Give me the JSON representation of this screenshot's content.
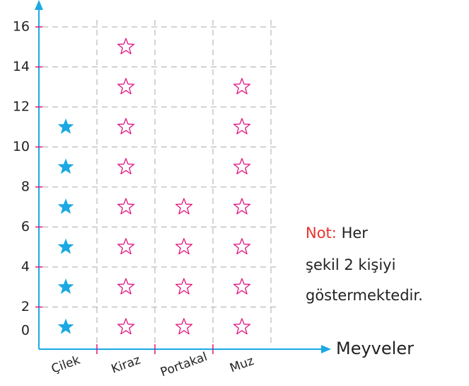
{
  "chart_data": {
    "type": "pictograph",
    "categories": [
      "Çilek",
      "Kiraz",
      "Portakal",
      "Muz"
    ],
    "values": [
      12,
      16,
      8,
      14
    ],
    "colors": [
      "#1aa9e2",
      "#e2147d",
      "#e2147d",
      "#e2147d"
    ],
    "filled": [
      true,
      false,
      false,
      false
    ],
    "ylim": [
      0,
      16
    ],
    "yticks": [
      0,
      2,
      4,
      6,
      8,
      10,
      12,
      14,
      16
    ],
    "grid": true,
    "xlabel": "Meyveler",
    "note": {
      "label": "Not:",
      "lines": [
        "Her",
        "şekil 2 kişiyi",
        "göstermektedir."
      ]
    }
  }
}
